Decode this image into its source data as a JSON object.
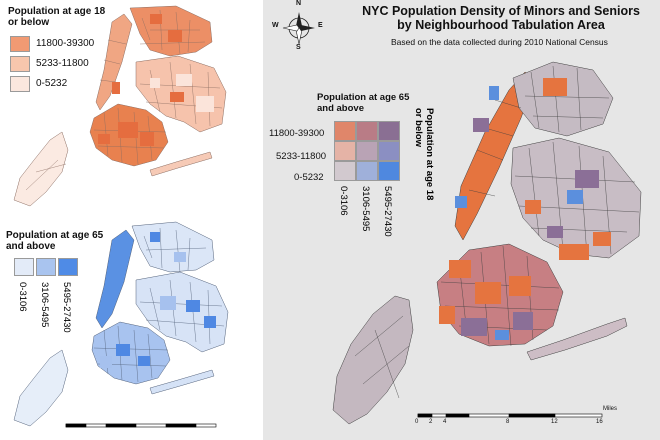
{
  "title": {
    "line1": "NYC Population Density of Minors and Seniors",
    "line2": "by Neighbourhood Tabulation Area",
    "subtitle": "Based on the data collected during 2010 National Census"
  },
  "legend_minors": {
    "title_line1": "Population at age 18",
    "title_line2": "or below",
    "classes": [
      {
        "label": "11800-39300",
        "color": "#f19a73"
      },
      {
        "label": "5233-11800",
        "color": "#f7c6ad"
      },
      {
        "label": "0-5232",
        "color": "#fbe7de"
      }
    ]
  },
  "legend_seniors": {
    "title_line1": "Population at age 65",
    "title_line2": "and above",
    "classes": [
      {
        "label": "0-3106",
        "color": "#e3ebf8"
      },
      {
        "label": "3106-5495",
        "color": "#a9c4ef"
      },
      {
        "label": "5495-27430",
        "color": "#4f8be6"
      }
    ]
  },
  "legend_bivariate": {
    "top_title_line1": "Population at age 65",
    "top_title_line2": "and above",
    "side_title_line1": "Population at age 18",
    "side_title_line2": "or below",
    "row_labels": [
      "11800-39300",
      "5233-11800",
      "0-5232"
    ],
    "col_labels": [
      "0-3106",
      "3106-5495",
      "5495-27430"
    ],
    "grid_colors": [
      [
        "#e0866a",
        "#b97c86",
        "#8a6f93"
      ],
      [
        "#e5b3a6",
        "#b9a3b5",
        "#8b8fc2"
      ],
      [
        "#d2c9cf",
        "#9fb0da",
        "#4f88df"
      ]
    ]
  },
  "north_arrow": {
    "n": "N",
    "s": "S",
    "e": "E",
    "w": "W"
  },
  "scale_bar": {
    "ticks": [
      "0",
      "2",
      "4",
      "8",
      "12",
      "16"
    ],
    "unit": "Miles"
  },
  "colors": {
    "minors_fill": "#e9835a",
    "minors_light": "#f7c9b6",
    "seniors_fill": "#5b92e3",
    "seniors_light": "#dfe9f8",
    "bivariate_orange": "#e5743f",
    "bivariate_purple": "#8b6f97",
    "bivariate_grey": "#c7bcc4",
    "panel_right_bg": "#e6e6e6"
  }
}
